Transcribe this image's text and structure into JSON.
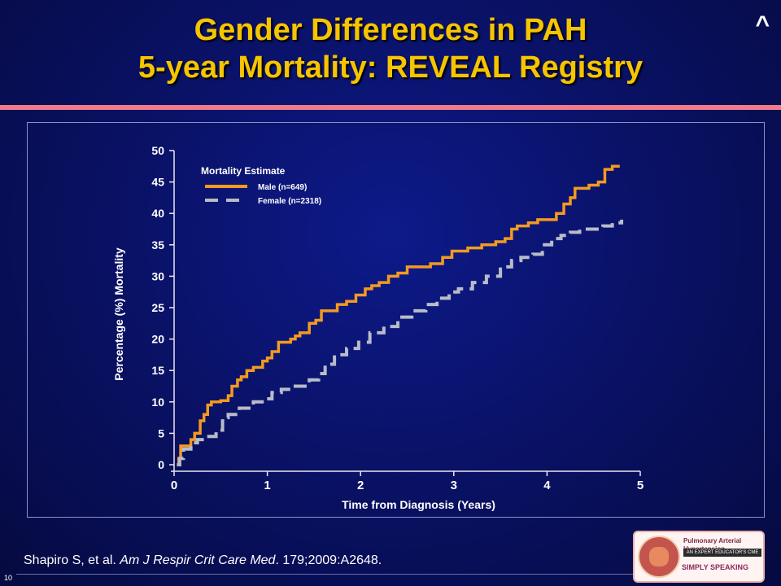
{
  "slide": {
    "title_line1": "Gender Differences in PAH",
    "title_line2": "5-year Mortality: REVEAL Registry",
    "corner_mark": "^",
    "reference_prefix": "Shapiro S, et al. ",
    "reference_journal": "Am J Respir Crit Care Med",
    "reference_suffix": ". 179;2009:A2648.",
    "page_number": "10",
    "logo_text": "SIMPLY SPEAKING",
    "logo_line": "Pulmonary Arterial Hypertension",
    "logo_banner": "AN EXPERT EDUCATOR'S CME LECTURE SERIES"
  },
  "colors": {
    "title": "#f6c400",
    "male_series": "#f39a1f",
    "female_series": "#b8bcc8",
    "accent_rule": "#f07b8a"
  },
  "chart_data": {
    "type": "line",
    "xlabel": "Time from Diagnosis (Years)",
    "ylabel": "Percentage (%) Mortality",
    "xlim": [
      0,
      5
    ],
    "ylim": [
      0,
      50
    ],
    "x_ticks": [
      "0",
      "1",
      "2",
      "3",
      "4",
      "5"
    ],
    "y_ticks": [
      "0",
      "5",
      "10",
      "15",
      "20",
      "25",
      "30",
      "35",
      "40",
      "45",
      "50"
    ],
    "legend_title": "Mortality Estimate",
    "legend_position": "top-left",
    "series": [
      {
        "name": "Male (n=649)",
        "style": "solid",
        "color": "#f39a1f",
        "x": [
          0.03,
          0.05,
          0.07,
          0.12,
          0.18,
          0.22,
          0.28,
          0.32,
          0.36,
          0.4,
          0.45,
          0.5,
          0.58,
          0.62,
          0.68,
          0.72,
          0.78,
          0.85,
          0.95,
          1.0,
          1.05,
          1.12,
          1.18,
          1.25,
          1.3,
          1.35,
          1.45,
          1.52,
          1.58,
          1.65,
          1.75,
          1.85,
          1.95,
          2.05,
          2.12,
          2.2,
          2.3,
          2.4,
          2.5,
          2.62,
          2.75,
          2.88,
          2.98,
          3.05,
          3.15,
          3.3,
          3.45,
          3.55,
          3.62,
          3.68,
          3.8,
          3.9,
          4.02,
          4.1,
          4.18,
          4.25,
          4.3,
          4.45,
          4.55,
          4.62,
          4.7,
          4.78
        ],
        "y": [
          0,
          1,
          3,
          3,
          4,
          5,
          7,
          8,
          9.5,
          10,
          10,
          10.2,
          11,
          12.5,
          13.5,
          14,
          15,
          15.5,
          16.5,
          17,
          18,
          19.5,
          19.5,
          20,
          20.5,
          21,
          22.5,
          23,
          24.5,
          24.5,
          25.5,
          26,
          27,
          28,
          28.5,
          29,
          30,
          30.5,
          31.5,
          31.5,
          32,
          33,
          34,
          34,
          34.5,
          35,
          35.5,
          36,
          37.5,
          38,
          38.5,
          39,
          39,
          40,
          41.5,
          42.5,
          44,
          44.5,
          45,
          47,
          47.5,
          47.5
        ]
      },
      {
        "name": "Female (n=2318)",
        "style": "dashed",
        "color": "#b8bcc8",
        "x": [
          0.03,
          0.06,
          0.1,
          0.18,
          0.25,
          0.35,
          0.45,
          0.52,
          0.58,
          0.7,
          0.85,
          0.98,
          1.05,
          1.15,
          1.3,
          1.45,
          1.55,
          1.62,
          1.72,
          1.85,
          1.98,
          2.1,
          2.25,
          2.4,
          2.55,
          2.7,
          2.82,
          2.95,
          3.05,
          3.2,
          3.35,
          3.5,
          3.62,
          3.72,
          3.85,
          3.95,
          4.05,
          4.15,
          4.25,
          4.35,
          4.5,
          4.6,
          4.7,
          4.8
        ],
        "y": [
          0,
          1,
          2.5,
          3.5,
          4,
          4.5,
          5.5,
          7.5,
          8,
          9,
          10,
          10.5,
          11.5,
          12,
          12.5,
          13.5,
          14.5,
          16,
          17.5,
          18.5,
          19.5,
          21,
          22,
          23.5,
          24.5,
          25.5,
          26.5,
          27.5,
          28,
          29,
          30,
          31.5,
          32.5,
          33,
          33.5,
          35,
          36,
          36.5,
          37,
          37.5,
          37.5,
          38,
          38.5,
          39
        ]
      }
    ]
  }
}
